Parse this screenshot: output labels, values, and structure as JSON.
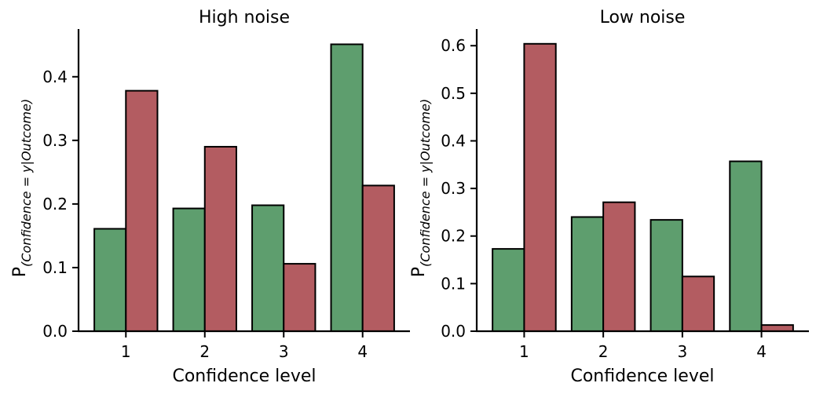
{
  "chart_data": [
    {
      "type": "bar",
      "title": "High noise",
      "xlabel": "Confidence level",
      "ylabel_main": "P",
      "ylabel_sub": "(Confidence = y|Outcome)",
      "categories": [
        "1",
        "2",
        "3",
        "4"
      ],
      "ylim": [
        0,
        0.475
      ],
      "yticks": [
        0.0,
        0.1,
        0.2,
        0.3,
        0.4
      ],
      "ytick_labels": [
        "0.0",
        "0.1",
        "0.2",
        "0.3",
        "0.4"
      ],
      "grid": false,
      "series": [
        {
          "color": "#5e9e6e",
          "values": [
            0.161,
            0.193,
            0.198,
            0.451
          ]
        },
        {
          "color": "#b35c61",
          "values": [
            0.378,
            0.29,
            0.106,
            0.229
          ]
        }
      ]
    },
    {
      "type": "bar",
      "title": "Low noise",
      "xlabel": "Confidence level",
      "ylabel_main": "P",
      "ylabel_sub": "(Confidence = y|Outcome)",
      "categories": [
        "1",
        "2",
        "3",
        "4"
      ],
      "ylim": [
        0,
        0.635
      ],
      "yticks": [
        0.0,
        0.1,
        0.2,
        0.3,
        0.4,
        0.5,
        0.6
      ],
      "ytick_labels": [
        "0.0",
        "0.1",
        "0.2",
        "0.3",
        "0.4",
        "0.5",
        "0.6"
      ],
      "grid": false,
      "series": [
        {
          "color": "#5e9e6e",
          "values": [
            0.173,
            0.24,
            0.234,
            0.357
          ]
        },
        {
          "color": "#b35c61",
          "values": [
            0.604,
            0.271,
            0.115,
            0.013
          ]
        }
      ]
    }
  ]
}
